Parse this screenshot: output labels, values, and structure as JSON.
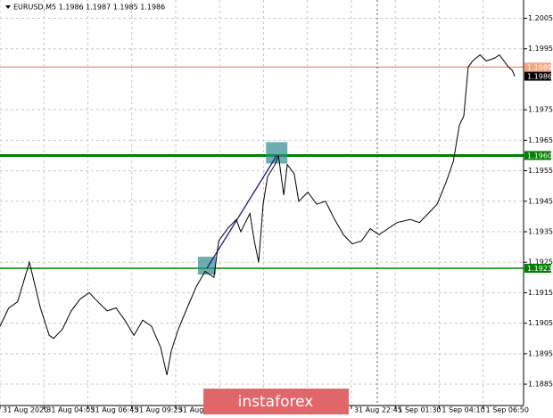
{
  "chart_data": {
    "type": "line",
    "title": "EURUSD,M5  1.1986 1.1987 1.1985 1.1986",
    "watermark": "instaforex",
    "xlim": [
      0,
      119
    ],
    "ylim": [
      1.1878,
      1.2011
    ],
    "grid": true,
    "yticks": [
      {
        "value": 1.1885,
        "label": "1.1885"
      },
      1.1895,
      1.1905,
      1.1915,
      1.1925,
      1.1935,
      1.1945,
      1.1955,
      1.1965,
      1.1975,
      1.1995,
      1.2005
    ],
    "xticks": [
      {
        "value": 0,
        "label": "31 Aug 2020"
      },
      {
        "value": 10,
        "label": "31 Aug 04:05"
      },
      {
        "value": 20,
        "label": "31 Aug 06:45"
      },
      {
        "value": 30,
        "label": "31 Aug 09:25"
      },
      {
        "value": 40,
        "label": "31 Aug"
      },
      {
        "value": 50,
        "label": null
      },
      {
        "value": 60,
        "label": null
      },
      {
        "value": 70,
        "label": null
      },
      {
        "value": 80,
        "label": "31 Aug 22:45"
      },
      {
        "value": 90,
        "label": "1 Sep 01:30"
      },
      {
        "value": 100,
        "label": "1 Sep 04:10"
      },
      {
        "value": 110,
        "label": "1 Sep 06:50"
      }
    ],
    "x": [
      0,
      2,
      4,
      6.7,
      9.2,
      11.2,
      12.2,
      14.2,
      16.2,
      18.3,
      20.3,
      22.3,
      24.4,
      26.4,
      28.4,
      30.5,
      32.5,
      34.5,
      36.6,
      38,
      39,
      40.6,
      42.6,
      44.7,
      46.7,
      48.7,
      49.8,
      51.8,
      53.8,
      54.8,
      56.9,
      57.9,
      58.9,
      59.9,
      60.9,
      62.6,
      63.4,
      64.6,
      65.4,
      67,
      68,
      70.1,
      72.1,
      74.1,
      76.2,
      78.2,
      80.2,
      82.3,
      84.3,
      86.3,
      88.3,
      90.4,
      93.4,
      95.5,
      97.5,
      99.5,
      101.5,
      103.2,
      104.6,
      105.6,
      106.6,
      107.6,
      109.3,
      110.7,
      112.7,
      113.7,
      115.8,
      116.6,
      117.2
    ],
    "series": [
      {
        "color": "#000000",
        "values": [
          1.1904,
          1.191,
          1.1912,
          1.1925,
          1.191,
          1.1901,
          1.19,
          1.1903,
          1.1909,
          1.1913,
          1.1915,
          1.1912,
          1.1909,
          1.191,
          1.1906,
          1.1901,
          1.1906,
          1.1904,
          1.1897,
          1.1888,
          1.1896,
          1.1903,
          1.191,
          1.1917,
          1.1922,
          1.192,
          1.1932,
          1.1936,
          1.1939,
          1.1935,
          1.1941,
          1.1932,
          1.1925,
          1.1944,
          1.1953,
          1.1957,
          1.196,
          1.1947,
          1.1957,
          1.1954,
          1.1945,
          1.1948,
          1.1944,
          1.1945,
          1.1939,
          1.1934,
          1.1931,
          1.1932,
          1.1936,
          1.1934,
          1.1936,
          1.1938,
          1.1939,
          1.1938,
          1.1941,
          1.1944,
          1.1951,
          1.1958,
          1.197,
          1.1973,
          1.1989,
          1.1991,
          1.1993,
          1.1991,
          1.1992,
          1.1993,
          1.1989,
          1.1988,
          1.1986
        ]
      }
    ],
    "levels": [
      {
        "value": 1.1989,
        "color": "#f4a582"
      },
      {
        "value": 1.1986,
        "color": "#000000"
      },
      {
        "value": 1.196,
        "label": "1.1960",
        "color": "#008000"
      },
      {
        "value": 1.1923,
        "color": "#008000"
      }
    ],
    "trade": [
      {
        "x": 47.1,
        "y": 1.1923
      },
      {
        "x": 63,
        "y": 1.196
      }
    ]
  }
}
